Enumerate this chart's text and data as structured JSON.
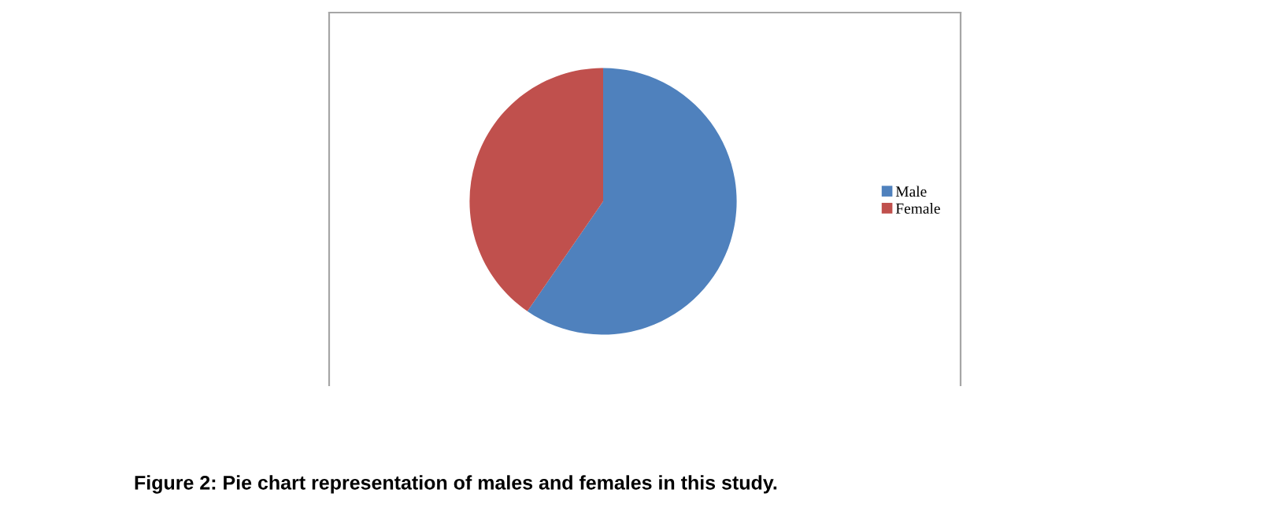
{
  "chart_data": {
    "type": "pie",
    "categories": [
      "Male",
      "Female"
    ],
    "values": [
      59.6,
      40.4
    ],
    "colors": [
      "#4f81bd",
      "#c0504d"
    ],
    "legend": "right",
    "annotations": [
      "Figure 2: Pie chart representation of males and females in this study."
    ]
  }
}
